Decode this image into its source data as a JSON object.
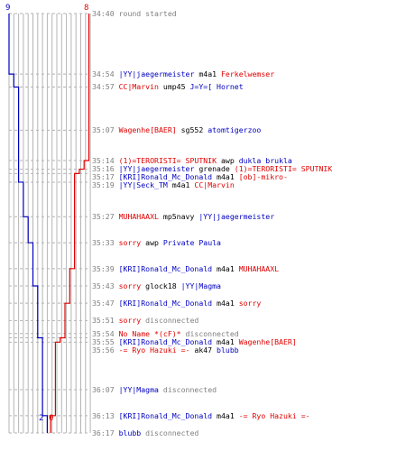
{
  "colors": {
    "blue_team": "#0000c0",
    "red_team": "#e00000",
    "neutral": "#808080",
    "grid": "#b4b4b4",
    "dash": "#b4b4b4"
  },
  "score": {
    "blue_start": "9",
    "red_start": "8",
    "blue_end": "2",
    "red_end": "0"
  },
  "timeline": {
    "start_sec": 2080,
    "end_sec": 2177,
    "blue_steps": [
      2094,
      2097,
      2119,
      2127,
      2133,
      2143,
      2155,
      2173
    ],
    "red_steps": [
      2114,
      2116,
      2117,
      2139,
      2147,
      2155,
      2156,
      2173
    ]
  },
  "events": [
    {
      "time": "34:40",
      "parts": [
        {
          "c": "n",
          "x": "round started"
        }
      ]
    },
    {
      "time": "34:54",
      "parts": [
        {
          "c": "b",
          "x": "|YY|jaegermeister"
        },
        {
          "c": "k",
          "x": " m4a1 "
        },
        {
          "c": "r",
          "x": "Ferkelwemser"
        }
      ]
    },
    {
      "time": "34:57",
      "parts": [
        {
          "c": "r",
          "x": "CC|Marvin"
        },
        {
          "c": "k",
          "x": " ump45 "
        },
        {
          "c": "b",
          "x": "J=Y=[ Hornet"
        }
      ]
    },
    {
      "time": "35:07",
      "parts": [
        {
          "c": "r",
          "x": "Wagenhe[BAER]"
        },
        {
          "c": "k",
          "x": " sg552 "
        },
        {
          "c": "b",
          "x": "atomtigerzoo"
        }
      ]
    },
    {
      "time": "35:14",
      "parts": [
        {
          "c": "r",
          "x": "(1)=TERORISTI= SPUTNIK"
        },
        {
          "c": "k",
          "x": " awp "
        },
        {
          "c": "b",
          "x": "dukla brukla"
        }
      ]
    },
    {
      "time": "35:16",
      "parts": [
        {
          "c": "b",
          "x": "|YY|jaegermeister"
        },
        {
          "c": "k",
          "x": " grenade "
        },
        {
          "c": "r",
          "x": "(1)=TERORISTI= SPUTNIK"
        }
      ]
    },
    {
      "time": "35:17",
      "parts": [
        {
          "c": "b",
          "x": "[KRI]Ronald_Mc_Donald"
        },
        {
          "c": "k",
          "x": " m4a1 "
        },
        {
          "c": "r",
          "x": "[ob]-mikro-"
        }
      ]
    },
    {
      "time": "35:19",
      "parts": [
        {
          "c": "b",
          "x": "|YY|Seck_TM"
        },
        {
          "c": "k",
          "x": " m4a1 "
        },
        {
          "c": "r",
          "x": "CC|Marvin"
        }
      ]
    },
    {
      "time": "35:27",
      "parts": [
        {
          "c": "r",
          "x": "MUHAHAAXL"
        },
        {
          "c": "k",
          "x": " mp5navy "
        },
        {
          "c": "b",
          "x": "|YY|jaegermeister"
        }
      ]
    },
    {
      "time": "35:33",
      "parts": [
        {
          "c": "r",
          "x": "sorry"
        },
        {
          "c": "k",
          "x": " awp "
        },
        {
          "c": "b",
          "x": "Private Paula"
        }
      ]
    },
    {
      "time": "35:39",
      "parts": [
        {
          "c": "b",
          "x": "[KRI]Ronald_Mc_Donald"
        },
        {
          "c": "k",
          "x": " m4a1 "
        },
        {
          "c": "r",
          "x": "MUHAHAAXL"
        }
      ]
    },
    {
      "time": "35:43",
      "parts": [
        {
          "c": "r",
          "x": "sorry"
        },
        {
          "c": "k",
          "x": " glock18 "
        },
        {
          "c": "b",
          "x": "|YY|Magma"
        }
      ]
    },
    {
      "time": "35:47",
      "parts": [
        {
          "c": "b",
          "x": "[KRI]Ronald_Mc_Donald"
        },
        {
          "c": "k",
          "x": " m4a1 "
        },
        {
          "c": "r",
          "x": "sorry"
        }
      ]
    },
    {
      "time": "35:51",
      "parts": [
        {
          "c": "r",
          "x": "sorry"
        },
        {
          "c": "n",
          "x": " disconnected"
        }
      ]
    },
    {
      "time": "35:54",
      "parts": [
        {
          "c": "r",
          "x": "No Name *(cF)*"
        },
        {
          "c": "n",
          "x": " disconnected"
        }
      ]
    },
    {
      "time": "35:55",
      "parts": [
        {
          "c": "b",
          "x": "[KRI]Ronald_Mc_Donald"
        },
        {
          "c": "k",
          "x": " m4a1 "
        },
        {
          "c": "r",
          "x": "Wagenhe[BAER]"
        }
      ]
    },
    {
      "time": "35:56",
      "parts": [
        {
          "c": "r",
          "x": "-= Ryo Hazuki =-"
        },
        {
          "c": "k",
          "x": " ak47 "
        },
        {
          "c": "b",
          "x": "blubb"
        }
      ]
    },
    {
      "time": "36:07",
      "parts": [
        {
          "c": "b",
          "x": "|YY|Magma"
        },
        {
          "c": "n",
          "x": " disconnected"
        }
      ]
    },
    {
      "time": "36:13",
      "parts": [
        {
          "c": "b",
          "x": "[KRI]Ronald_Mc_Donald"
        },
        {
          "c": "k",
          "x": " m4a1 "
        },
        {
          "c": "r",
          "x": "-= Ryo Hazuki =-"
        }
      ]
    },
    {
      "time": "36:17",
      "parts": [
        {
          "c": "b",
          "x": "blubb"
        },
        {
          "c": "n",
          "x": " disconnected"
        }
      ]
    }
  ]
}
